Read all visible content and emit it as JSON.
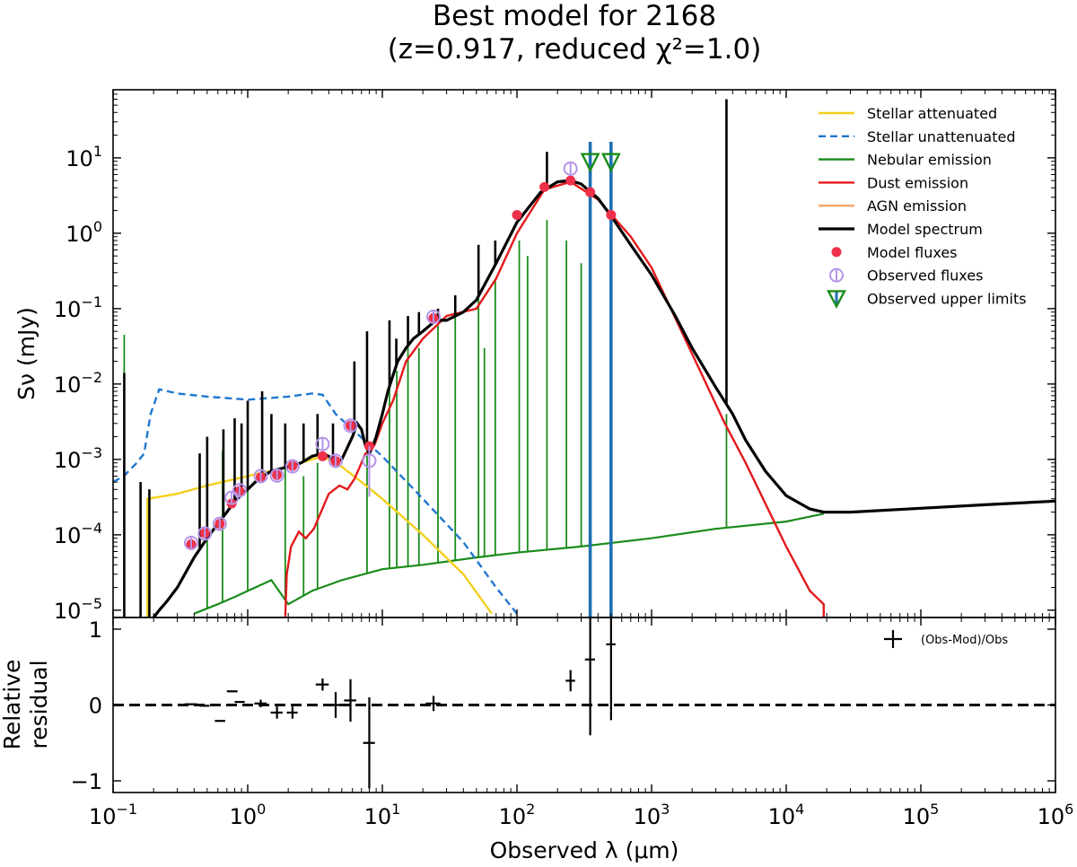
{
  "chart_data": {
    "type": "line",
    "title_line1": "Best model for 2168",
    "title_line2": "(z=0.917, reduced χ²=1.0)",
    "xlabel": "Observed λ (μm)",
    "ylabel_top": "Sν (mJy)",
    "ylabel_bottom_line1": "Relative",
    "ylabel_bottom_line2": "residual",
    "x_scale": "log",
    "xlim": [
      0.1,
      1000000
    ],
    "x_ticks": [
      {
        "base": "10",
        "exp": "−1",
        "value": 0.1
      },
      {
        "base": "10",
        "exp": "0",
        "value": 1
      },
      {
        "base": "10",
        "exp": "1",
        "value": 10
      },
      {
        "base": "10",
        "exp": "2",
        "value": 100
      },
      {
        "base": "10",
        "exp": "3",
        "value": 1000
      },
      {
        "base": "10",
        "exp": "4",
        "value": 10000
      },
      {
        "base": "10",
        "exp": "5",
        "value": 100000
      },
      {
        "base": "10",
        "exp": "6",
        "value": 1000000
      }
    ],
    "top_panel": {
      "y_scale": "log",
      "ylim": [
        8e-06,
        80
      ],
      "y_ticks": [
        {
          "base": "10",
          "exp": "−5",
          "value": 1e-05
        },
        {
          "base": "10",
          "exp": "−4",
          "value": 0.0001
        },
        {
          "base": "10",
          "exp": "−3",
          "value": 0.001
        },
        {
          "base": "10",
          "exp": "−2",
          "value": 0.01
        },
        {
          "base": "10",
          "exp": "−1",
          "value": 0.1
        },
        {
          "base": "10",
          "exp": "0",
          "value": 1
        },
        {
          "base": "10",
          "exp": "1",
          "value": 10
        }
      ],
      "legend_position": "top-right",
      "series": [
        {
          "name": "Stellar attenuated",
          "color": "#f2cf1e",
          "style": "solid",
          "x": [
            0.18,
            0.18,
            0.3,
            0.5,
            1.0,
            2.0,
            3.0,
            3.6,
            4.0,
            5.0,
            7.0,
            10,
            20,
            40,
            65
          ],
          "y": [
            7e-06,
            0.0003,
            0.00035,
            0.00045,
            0.0006,
            0.0008,
            0.001,
            0.0011,
            0.001,
            0.0008,
            0.0005,
            0.0003,
            0.0001,
            3e-05,
            9e-06
          ]
        },
        {
          "name": "Stellar unattenuated",
          "color": "#1f77d0",
          "style": "dashed",
          "x": [
            0.1,
            0.12,
            0.15,
            0.17,
            0.19,
            0.22,
            0.3,
            0.5,
            1.0,
            2.0,
            3.0,
            3.6,
            4.5,
            6.0,
            10,
            20,
            40,
            70,
            100
          ],
          "y": [
            0.0005,
            0.0006,
            0.0009,
            0.0012,
            0.004,
            0.0085,
            0.0075,
            0.0068,
            0.0062,
            0.0068,
            0.0075,
            0.0072,
            0.004,
            0.0025,
            0.0011,
            0.0003,
            8e-05,
            2e-05,
            9e-06
          ]
        },
        {
          "name": "Nebular emission",
          "color": "#1a8c1a",
          "style": "solid",
          "continuum_x": [
            0.4,
            0.6,
            0.8,
            1.0,
            1.5,
            2.0,
            3.0,
            5.0,
            10,
            20,
            50,
            100,
            300,
            1000,
            3000,
            10000,
            19000
          ],
          "continuum_y": [
            9e-06,
            1.2e-05,
            1.5e-05,
            1.8e-05,
            2.5e-05,
            1.2e-05,
            1.8e-05,
            2.5e-05,
            3.5e-05,
            4e-05,
            5e-05,
            5.8e-05,
            7e-05,
            9e-05,
            0.00012,
            0.00015,
            0.00019
          ],
          "lines_x": [
            0.121,
            0.5,
            0.65,
            1.0,
            1.9,
            2.6,
            3.3,
            7.7,
            11.3,
            12.8,
            15.5,
            18.7,
            25.9,
            34.8,
            51.8,
            57.3,
            69.0,
            104,
            120,
            167,
            233,
            300,
            3600
          ],
          "lines_y": [
            0.045,
            0.0005,
            0.0013,
            0.0012,
            0.0008,
            0.0006,
            0.0009,
            0.0018,
            0.02,
            0.015,
            0.04,
            0.03,
            0.06,
            0.15,
            0.7,
            0.03,
            0.25,
            0.8,
            0.5,
            1.5,
            0.8,
            0.4,
            0.004
          ]
        },
        {
          "name": "Dust emission",
          "color": "#e31a1c",
          "style": "solid",
          "x": [
            1.9,
            1.95,
            2.1,
            2.4,
            2.7,
            3.1,
            3.5,
            4.0,
            4.8,
            5.5,
            6.2,
            6.8,
            7.5,
            8.0,
            8.8,
            10,
            12,
            15,
            20,
            30,
            50,
            70,
            100,
            160,
            250,
            400,
            700,
            1000,
            2000,
            3500,
            5000,
            10000,
            15000,
            19000,
            19000
          ],
          "y": [
            8e-06,
            3e-05,
            7e-05,
            0.00011,
            9e-05,
            0.00012,
            0.0002,
            0.00035,
            0.00045,
            0.0004,
            0.00055,
            0.0008,
            0.0012,
            0.0012,
            0.0016,
            0.003,
            0.006,
            0.02,
            0.04,
            0.08,
            0.1,
            0.25,
            1.0,
            3.8,
            4.8,
            2.8,
            0.9,
            0.35,
            0.025,
            0.003,
            0.0009,
            7e-05,
            1.8e-05,
            1.2e-05,
            8e-06
          ]
        },
        {
          "name": "AGN emission",
          "color": "#f9a465",
          "style": "solid",
          "x": [],
          "y": []
        },
        {
          "name": "Model spectrum",
          "color": "#000000",
          "style": "solid",
          "x": [
            0.2,
            0.22,
            0.25,
            0.3,
            0.4,
            0.5,
            0.6,
            0.7,
            0.8,
            1.0,
            1.2,
            1.5,
            2.0,
            2.5,
            3.0,
            3.6,
            4.0,
            4.5,
            5.0,
            6.0,
            6.5,
            7.0,
            7.5,
            8.0,
            8.5,
            9.0,
            10,
            11,
            12,
            13,
            15,
            17,
            20,
            25,
            30,
            40,
            50,
            70,
            100,
            150,
            200,
            250,
            300,
            400,
            500,
            700,
            1000,
            1500,
            2000,
            3000,
            4000,
            5000,
            7000,
            10000,
            15000,
            19000,
            30000,
            100000,
            300000,
            1000000
          ],
          "y": [
            8e-06,
            1e-05,
            1.3e-05,
            2e-05,
            5e-05,
            9e-05,
            0.00014,
            0.0002,
            0.00028,
            0.0004,
            0.00055,
            0.0007,
            0.0008,
            0.0009,
            0.0011,
            0.0012,
            0.0011,
            0.0009,
            0.001,
            0.002,
            0.003,
            0.0025,
            0.0015,
            0.0012,
            0.0015,
            0.002,
            0.004,
            0.008,
            0.013,
            0.02,
            0.03,
            0.04,
            0.05,
            0.07,
            0.07,
            0.09,
            0.13,
            0.4,
            1.4,
            3.5,
            4.8,
            5.0,
            4.5,
            2.9,
            1.7,
            0.7,
            0.28,
            0.08,
            0.03,
            0.009,
            0.004,
            0.0018,
            0.0007,
            0.00033,
            0.00022,
            0.0002,
            0.0002,
            0.000225,
            0.00025,
            0.00028
          ],
          "spike_x": [
            0.121,
            0.16,
            0.186,
            0.44,
            0.5,
            0.66,
            0.8,
            0.9,
            1.0,
            1.28,
            1.5,
            1.9,
            2.6,
            3.3,
            4.3,
            6.2,
            7.7,
            11.3,
            12.7,
            15.5,
            18.7,
            25.9,
            34.8,
            51.8,
            69,
            167,
            3600
          ],
          "spike_y": [
            0.014,
            0.0005,
            0.0004,
            0.0012,
            0.002,
            0.0025,
            0.0035,
            0.003,
            0.006,
            0.008,
            0.004,
            0.003,
            0.003,
            0.004,
            0.003,
            0.02,
            0.05,
            0.07,
            0.04,
            0.08,
            0.09,
            0.1,
            0.15,
            0.7,
            0.8,
            12,
            60
          ]
        },
        {
          "name": "Model fluxes",
          "color": "#ee3048",
          "style": "marker",
          "x": [
            0.38,
            0.48,
            0.62,
            0.76,
            0.87,
            1.25,
            1.65,
            2.15,
            3.6,
            4.5,
            5.8,
            8.0,
            24,
            100,
            160,
            250,
            350,
            500
          ],
          "y": [
            7.5e-05,
            0.000105,
            0.00014,
            0.00026,
            0.00038,
            0.00058,
            0.00062,
            0.00082,
            0.0011,
            0.00095,
            0.0028,
            0.0015,
            0.075,
            1.75,
            4.1,
            5.0,
            3.5,
            1.75
          ]
        },
        {
          "name": "Observed fluxes",
          "color": "#b693e8",
          "style": "open-marker",
          "x": [
            0.38,
            0.48,
            0.62,
            0.76,
            0.87,
            1.25,
            1.65,
            2.15,
            3.6,
            4.5,
            5.8,
            8.0,
            24,
            250
          ],
          "y": [
            7.8e-05,
            0.000104,
            0.00014,
            0.00031,
            0.00039,
            0.0006,
            0.00061,
            0.00081,
            0.0016,
            0.00096,
            0.0028,
            0.00096,
            0.078,
            7.2
          ]
        },
        {
          "name": "Observed upper limits",
          "color": "#1a8c1a",
          "style": "triangle",
          "x": [
            350,
            500
          ],
          "y": [
            9.0,
            9.0
          ]
        }
      ]
    },
    "bottom_panel": {
      "y_scale": "linear",
      "ylim": [
        -1,
        1
      ],
      "y_ticks": [
        {
          "label": "1",
          "value": 1
        },
        {
          "label": "0",
          "value": 0
        },
        {
          "label": "−1",
          "value": -1
        }
      ],
      "reference_line": 0,
      "series": [
        {
          "name": "(Obs-Mod)/Obs",
          "color": "#000000",
          "style": "errorbar",
          "points": [
            {
              "x": 0.38,
              "y": 0.01,
              "yerr": 0.0,
              "xl": 0.34,
              "xh": 0.42
            },
            {
              "x": 0.48,
              "y": -0.01,
              "yerr": 0.0,
              "xl": 0.44,
              "xh": 0.52
            },
            {
              "x": 0.62,
              "y": -0.21,
              "yerr": 0.0,
              "xl": 0.57,
              "xh": 0.68
            },
            {
              "x": 0.76,
              "y": 0.18,
              "yerr": 0.0,
              "xl": 0.7,
              "xh": 0.84
            },
            {
              "x": 0.87,
              "y": 0.04,
              "yerr": 0.0,
              "xl": 0.8,
              "xh": 0.95
            },
            {
              "x": 1.25,
              "y": 0.02,
              "yerr": 0.05,
              "xl": 1.12,
              "xh": 1.38
            },
            {
              "x": 1.65,
              "y": -0.1,
              "yerr": 0.08,
              "xl": 1.48,
              "xh": 1.82
            },
            {
              "x": 2.15,
              "y": -0.1,
              "yerr": 0.08,
              "xl": 1.95,
              "xh": 2.35
            },
            {
              "x": 3.6,
              "y": 0.27,
              "yerr": 0.08,
              "xl": 3.2,
              "xh": 4.0
            },
            {
              "x": 4.5,
              "y": 0.0,
              "yerr": 0.17,
              "xl": 4.0,
              "xh": 5.0
            },
            {
              "x": 5.8,
              "y": 0.06,
              "yerr": 0.28,
              "xl": 5.2,
              "xh": 6.4
            },
            {
              "x": 8.0,
              "y": -0.5,
              "yerr": 0.6,
              "xl": 7.2,
              "xh": 8.8
            },
            {
              "x": 24,
              "y": 0.02,
              "yerr": 0.1,
              "xl": 21,
              "xh": 27
            },
            {
              "x": 250,
              "y": 0.32,
              "yerr": 0.14,
              "xl": 230,
              "xh": 270
            },
            {
              "x": 350,
              "y": 0.6,
              "yerr": 1.0,
              "xl": 320,
              "xh": 380
            },
            {
              "x": 500,
              "y": 0.8,
              "yerr": 1.0,
              "xl": 460,
              "xh": 540
            }
          ]
        }
      ]
    },
    "upper_limit_lines": {
      "color": "#1f6fb4",
      "x": [
        350,
        500
      ]
    }
  }
}
